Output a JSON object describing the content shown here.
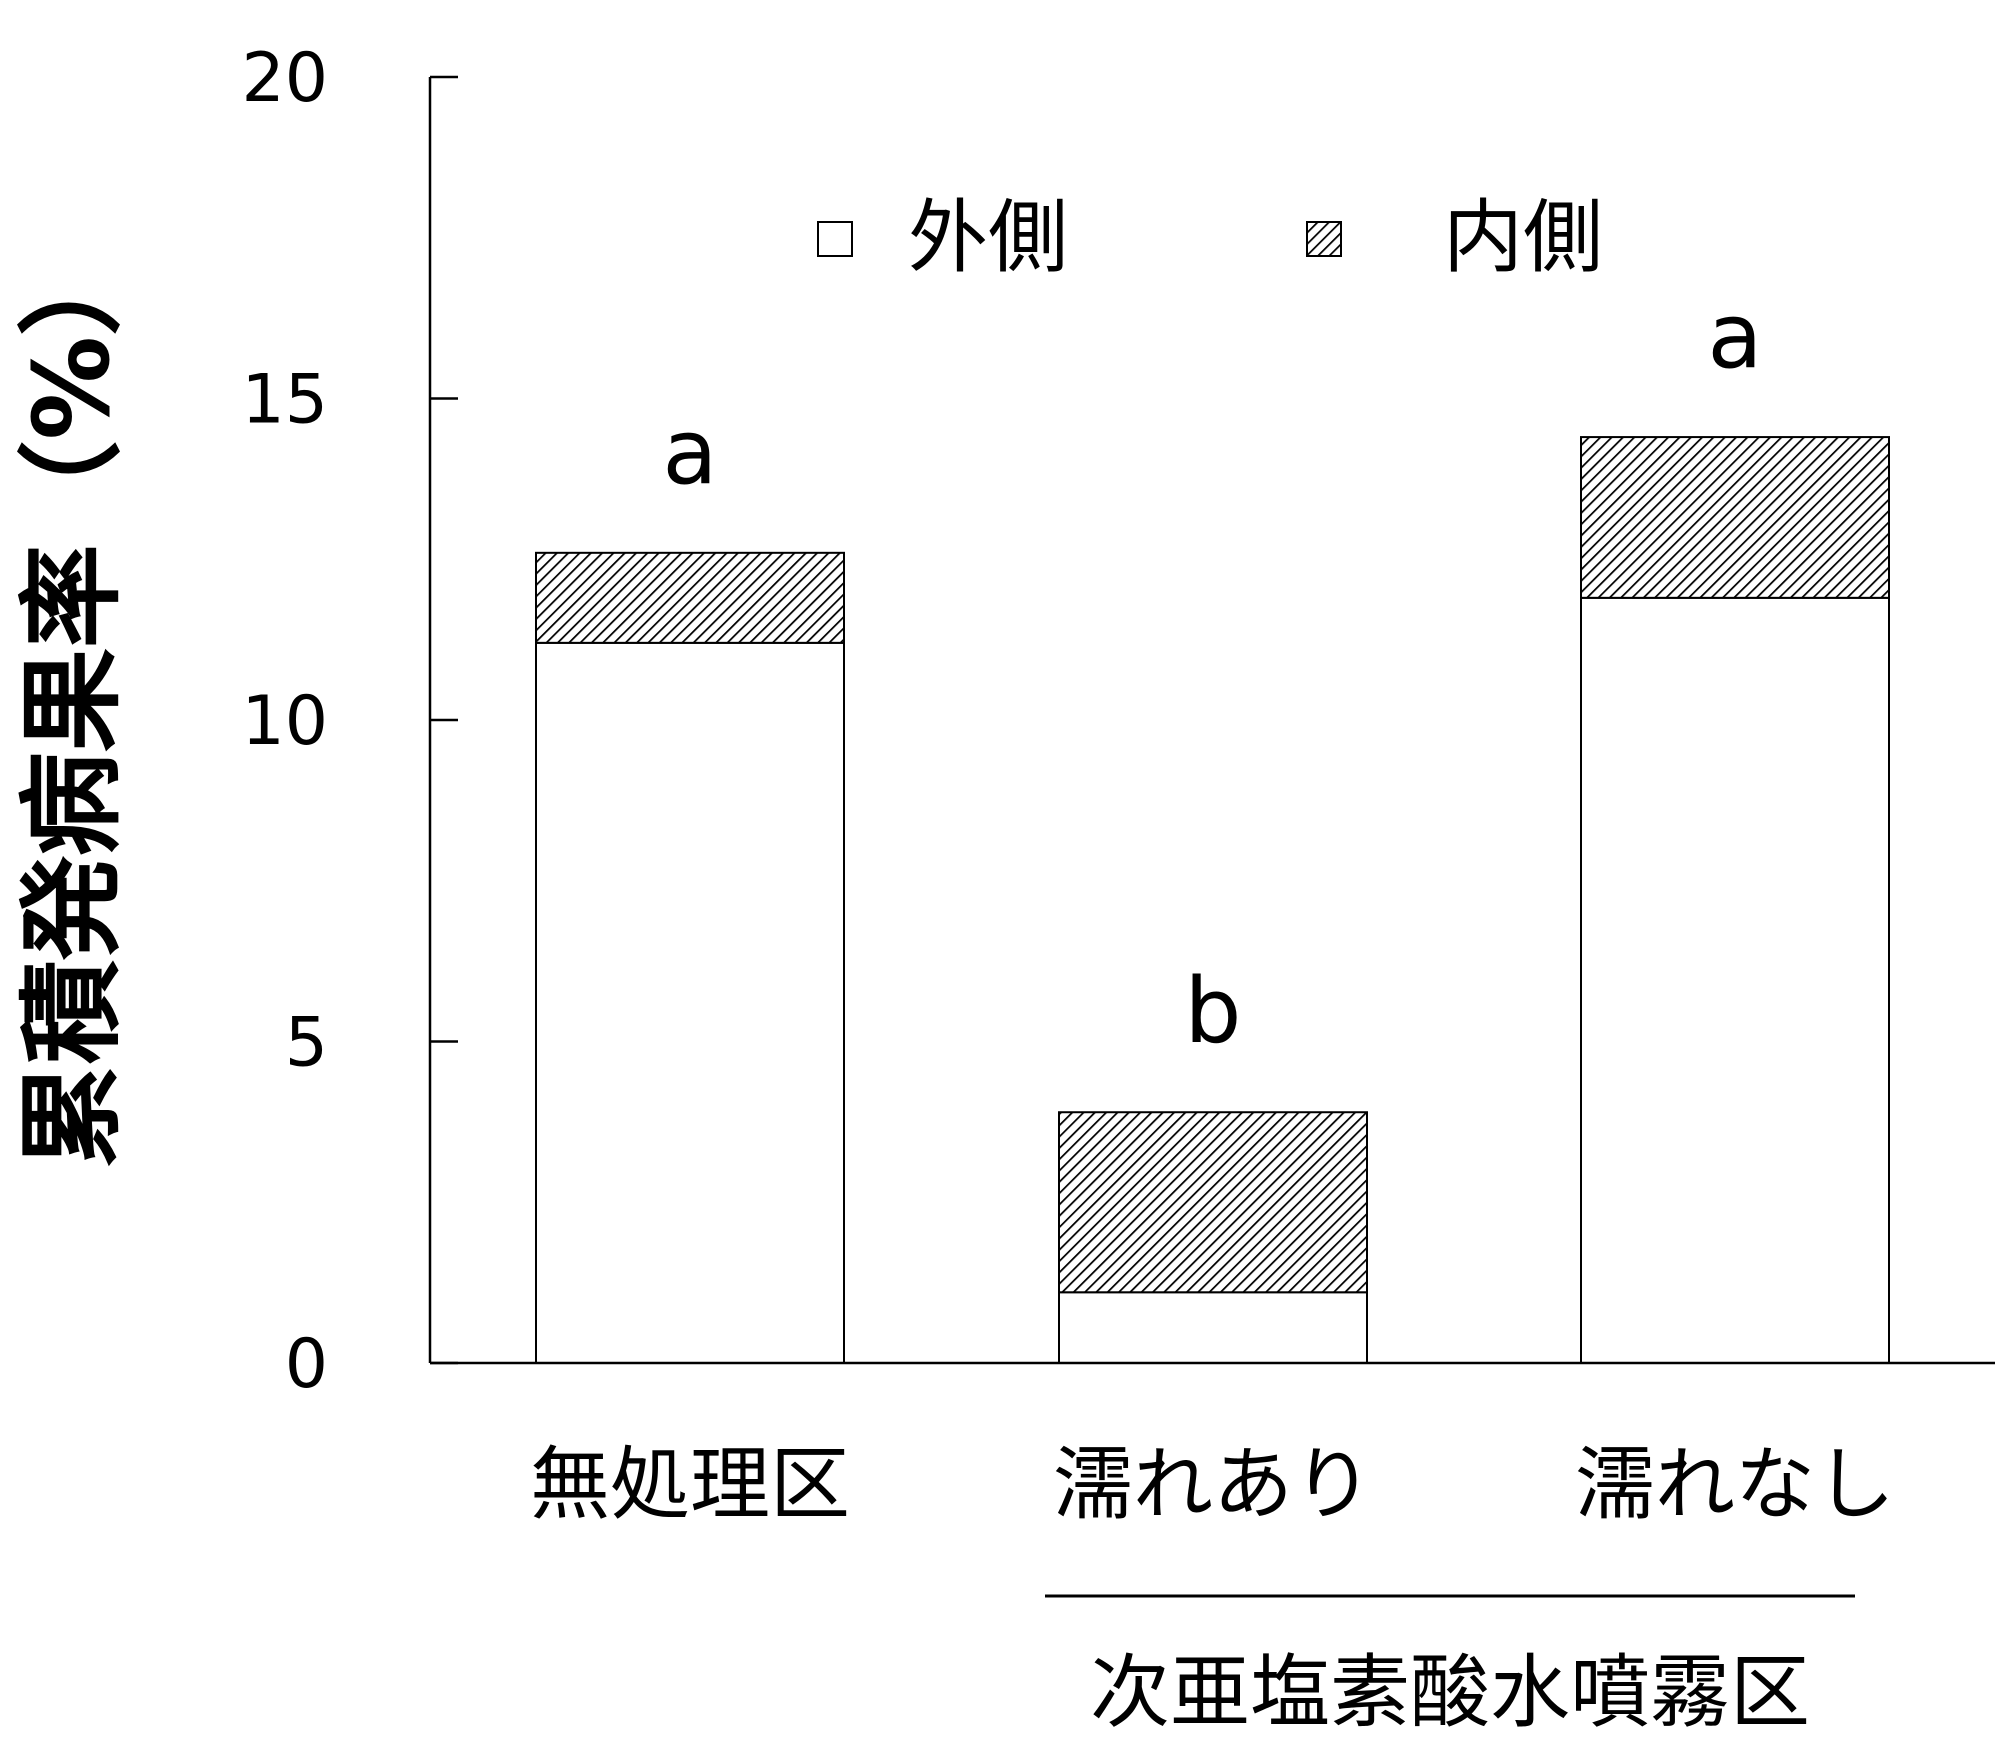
{
  "chart_data": {
    "type": "bar",
    "stacked": true,
    "ylabel": "累積発病果率（%）",
    "ylim": [
      0,
      20
    ],
    "yticks": [
      0,
      5,
      10,
      15,
      20
    ],
    "categories": [
      "無処理区",
      "濡れあり",
      "濡れなし"
    ],
    "group_label": "次亜塩素酸水噴霧区",
    "group_categories": [
      "濡れあり",
      "濡れなし"
    ],
    "series": [
      {
        "name": "外側",
        "values": [
          11.2,
          1.1,
          11.9
        ],
        "pattern": "solid",
        "color": "#ffffff"
      },
      {
        "name": "内側",
        "values": [
          1.4,
          2.8,
          2.5
        ],
        "pattern": "hatched",
        "color": "#000000"
      }
    ],
    "significance": [
      "a",
      "b",
      "a"
    ],
    "legend_position": "top-center",
    "grid": false
  }
}
